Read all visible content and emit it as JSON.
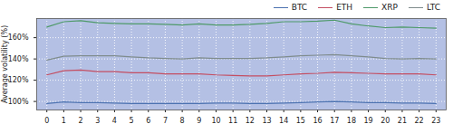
{
  "chart_data": {
    "type": "line",
    "y_label": "Average volatility (%)",
    "x": [
      0,
      1,
      2,
      3,
      4,
      5,
      6,
      7,
      8,
      9,
      10,
      11,
      12,
      13,
      14,
      15,
      16,
      17,
      18,
      19,
      20,
      21,
      22,
      23
    ],
    "xlim": [
      -0.6,
      23.6
    ],
    "xticks": [
      0,
      1,
      2,
      3,
      4,
      5,
      6,
      7,
      8,
      9,
      10,
      11,
      12,
      13,
      14,
      15,
      16,
      17,
      18,
      19,
      20,
      21,
      22,
      23
    ],
    "ylim": [
      92,
      178
    ],
    "yticks": [
      {
        "value": 100,
        "label": "100%"
      },
      {
        "value": 120,
        "label": "120%"
      },
      {
        "value": 140,
        "label": "140%"
      },
      {
        "value": 160,
        "label": "160%"
      }
    ],
    "grid": true,
    "legend": "upper right",
    "series": [
      {
        "name": "BTC",
        "color": "#4c72b0",
        "values": [
          98,
          99.5,
          99,
          99,
          98.5,
          98,
          98,
          98,
          98,
          98,
          98.5,
          98.5,
          98,
          98,
          98.5,
          99,
          99.5,
          100,
          99.5,
          99,
          99,
          98.5,
          98.5,
          98
        ]
      },
      {
        "name": "ETH",
        "color": "#c44e62",
        "values": [
          125,
          129,
          129.5,
          128,
          128,
          127,
          127,
          126,
          126,
          126,
          125,
          124.5,
          124,
          124,
          125,
          126,
          126.5,
          127.5,
          127,
          126.5,
          126,
          126,
          126,
          125
        ]
      },
      {
        "name": "XRP",
        "color": "#4f9a6a",
        "values": [
          170,
          175,
          176,
          174,
          173.5,
          173,
          173,
          172.5,
          172,
          173,
          172,
          172,
          172.5,
          173.5,
          175,
          175,
          175.5,
          176.5,
          173,
          171,
          169.5,
          170,
          169.5,
          169
        ]
      },
      {
        "name": "LTC",
        "color": "#7f8c8d",
        "values": [
          139,
          142.5,
          143,
          143,
          143,
          142,
          141,
          140.5,
          140,
          141,
          140.5,
          140.5,
          140.5,
          141,
          142,
          143,
          143.5,
          144,
          143,
          142,
          140.5,
          140,
          140.5,
          140
        ]
      }
    ]
  }
}
